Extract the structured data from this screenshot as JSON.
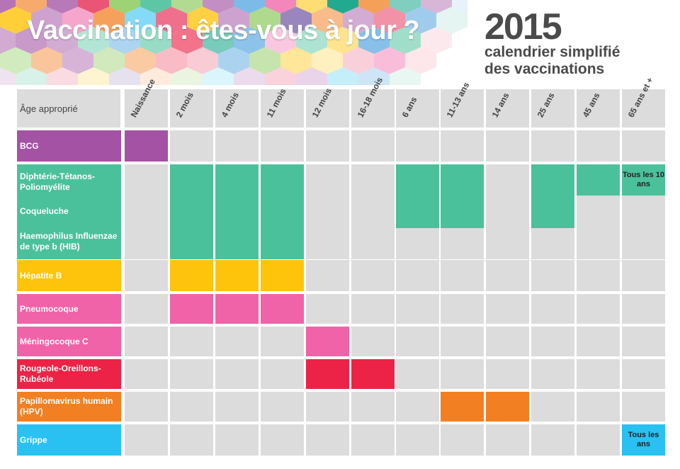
{
  "header": {
    "title": "Vaccination : êtes-vous à jour ?",
    "year": "2015",
    "subtitle_line1": "calendrier simplifié",
    "subtitle_line2": "des vaccinations"
  },
  "colors": {
    "cell_gray": "#dcdcdd",
    "bcg": "#a452a4",
    "dtp": "#4bc19b",
    "hepb": "#fec40c",
    "pneumo": "#f063a8",
    "mening": "#f063a8",
    "ror": "#ec2346",
    "hpv": "#f28022",
    "grippe": "#29c1f2",
    "note_green": "#4bc19b",
    "note_blue": "#29c1f2"
  },
  "chart_data": {
    "type": "table",
    "corner_label": "Âge approprié",
    "ages": [
      "Naissance",
      "2 mois",
      "4 mois",
      "11 mois",
      "12 mois",
      "16-18 mois",
      "6 ans",
      "11-13 ans",
      "14 ans",
      "25 ans",
      "45 ans",
      "65 ans et +"
    ],
    "groups": [
      {
        "id": "bcg",
        "color_key": "bcg",
        "vaccines": [
          "BCG"
        ],
        "filled": [
          0
        ]
      },
      {
        "id": "dtp",
        "color_key": "dtp",
        "vaccines": [
          "Diphtérie-Tétanos-Poliomyélite",
          "Coqueluche",
          "Haemophilus Influenzae de type b (HIB)"
        ],
        "filled": [
          1,
          2,
          3
        ]
      },
      {
        "id": "hepb",
        "color_key": "hepb",
        "vaccines": [
          "Hépatite B"
        ],
        "filled": [
          1,
          2,
          3
        ]
      },
      {
        "id": "pneumo",
        "color_key": "pneumo",
        "vaccines": [
          "Pneumocoque"
        ],
        "filled": [
          1,
          2,
          3
        ]
      },
      {
        "id": "mening",
        "color_key": "mening",
        "vaccines": [
          "Méningocoque C"
        ],
        "filled": [
          4
        ]
      },
      {
        "id": "ror",
        "color_key": "ror",
        "vaccines": [
          "Rougeole-Oreillons-Rubéole"
        ],
        "filled": [
          4,
          5
        ]
      },
      {
        "id": "hpv",
        "color_key": "hpv",
        "vaccines": [
          "Papillomavirus humain (HPV)"
        ],
        "filled": [
          7,
          8
        ]
      },
      {
        "id": "grippe",
        "color_key": "grippe",
        "vaccines": [
          "Grippe"
        ],
        "filled": [
          11
        ]
      }
    ],
    "rappels": {
      "vaccines": [
        "Diphtérie-Tétanos-Poliomyélite",
        "Coqueluche"
      ],
      "dtp_ages": [
        6,
        7,
        9,
        10
      ],
      "coqueluche_ages": [
        6,
        7,
        9
      ]
    },
    "notes": [
      {
        "vaccine": "Diphtérie-Tétanos-Poliomyélite",
        "age": "65 ans et +",
        "text": "Tous les 10 ans"
      },
      {
        "vaccine": "Grippe",
        "age": "65 ans et +",
        "text": "Tous les ans"
      }
    ]
  }
}
